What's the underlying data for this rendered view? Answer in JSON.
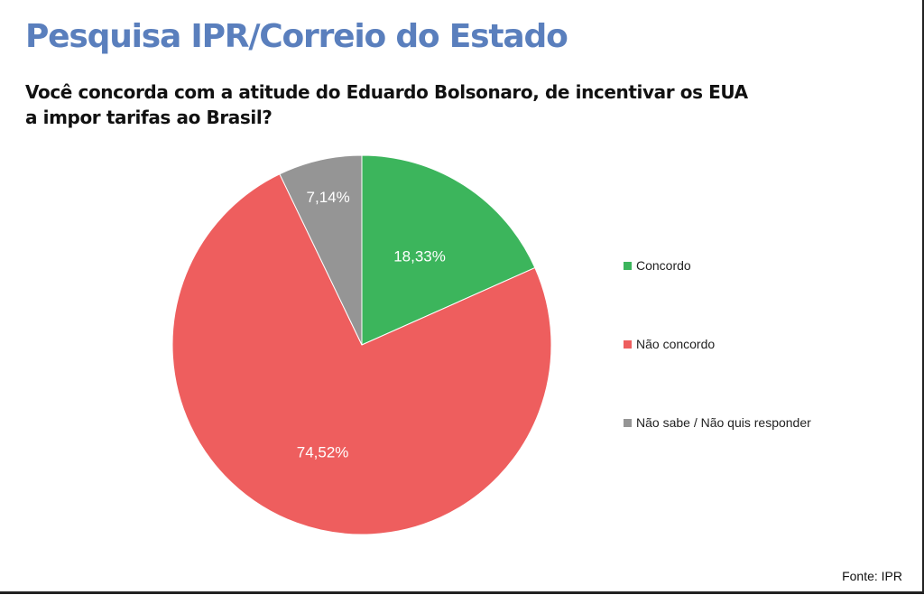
{
  "header": {
    "title": "Pesquisa IPR/Correio do Estado",
    "question_line1": "Você concorda com a atitude do Eduardo Bolsonaro, de incentivar os EUA",
    "question_line2": "a impor tarifas ao Brasil?"
  },
  "source": "Fonte: IPR",
  "chart_data": {
    "type": "pie",
    "title": "",
    "legend_position": "right",
    "slices": [
      {
        "name": "Concordo",
        "value": 18.33,
        "label": "18,33%",
        "color": "#3cb55c"
      },
      {
        "name": "Não concordo",
        "value": 74.52,
        "label": "74,52%",
        "color": "#ee5e5e"
      },
      {
        "name": "Não sabe / Não quis responder",
        "value": 7.14,
        "label": "7,14%",
        "color": "#959595"
      }
    ]
  }
}
